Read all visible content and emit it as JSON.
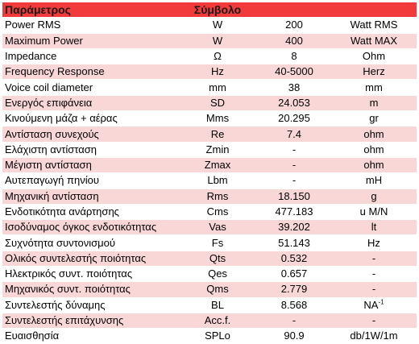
{
  "table": {
    "header": {
      "col_param": "Παράμετρος",
      "col_symbol": "Σύμβολο",
      "col_value": "",
      "col_unit": ""
    },
    "rows": [
      {
        "name": "Power RMS",
        "symbol": "W",
        "value": "200",
        "unit": "Watt RMS"
      },
      {
        "name": "Maximum Power",
        "symbol": "W",
        "value": "400",
        "unit": "Watt MAX"
      },
      {
        "name": "Impedance",
        "symbol": "Ω",
        "value": "8",
        "unit": "Ohm"
      },
      {
        "name": "Frequency Response",
        "symbol": "Hz",
        "value": "40-5000",
        "unit": "Herz"
      },
      {
        "name": "Voice coil diameter",
        "symbol": "mm",
        "value": "38",
        "unit": "mm"
      },
      {
        "name": "Ενεργός επιφάνεια",
        "symbol": "SD",
        "value": "24.053",
        "unit": "m"
      },
      {
        "name": "Κινούμενη μάζα + αέρας",
        "symbol": "Mms",
        "value": "20.295",
        "unit": "gr"
      },
      {
        "name": "Αντίσταση συνεχούς",
        "symbol": "Re",
        "value": "7.4",
        "unit": "ohm"
      },
      {
        "name": "Ελάχιστη αντίσταση",
        "symbol": "Zmin",
        "value": "-",
        "unit": "ohm"
      },
      {
        "name": "Μέγιστη αντίσταση",
        "symbol": "Zmax",
        "value": "-",
        "unit": "ohm"
      },
      {
        "name": "Αυτεπαγωγή πηνίου",
        "symbol": "Lbm",
        "value": "-",
        "unit": "mH"
      },
      {
        "name": "Μηχανική αντίσταση",
        "symbol": "Rms",
        "value": "18.150",
        "unit": "g"
      },
      {
        "name": "Ενδοτικότητα ανάρτησης",
        "symbol": "Cms",
        "value": "477.183",
        "unit": "u M/N"
      },
      {
        "name": "Ισοδύναμος όγκος ενδοτικότητας",
        "symbol": "Vas",
        "value": "39.202",
        "unit": "lt"
      },
      {
        "name": "Συχνότητα συντονισμού",
        "symbol": "Fs",
        "value": "51.143",
        "unit": "Hz"
      },
      {
        "name": "Ολικός συντελεστής ποιότητας",
        "symbol": "Qts",
        "value": "0.532",
        "unit": "-"
      },
      {
        "name": "Ηλεκτρικός συντ. ποιότητας",
        "symbol": "Qes",
        "value": "0.657",
        "unit": "-"
      },
      {
        "name": "Μηχανικός συντ. ποιότητας",
        "symbol": "Qms",
        "value": "2.779",
        "unit": "-"
      },
      {
        "name": "Συντελεστής δύναμης",
        "symbol": "BL",
        "value": "8.568",
        "unit": "NA",
        "unit_sup": "-1"
      },
      {
        "name": "Συντελεστής επιτάχυνσης",
        "symbol": "Acc.f.",
        "value": "-",
        "unit": "-"
      },
      {
        "name": "Ευαισθησία",
        "symbol": "SPLo",
        "value": "90.9",
        "unit": "db/1W/1m"
      }
    ]
  },
  "colors": {
    "header": "#f23a3a",
    "band_pink": "#f9d7d7",
    "band_light": "#ffffff"
  }
}
